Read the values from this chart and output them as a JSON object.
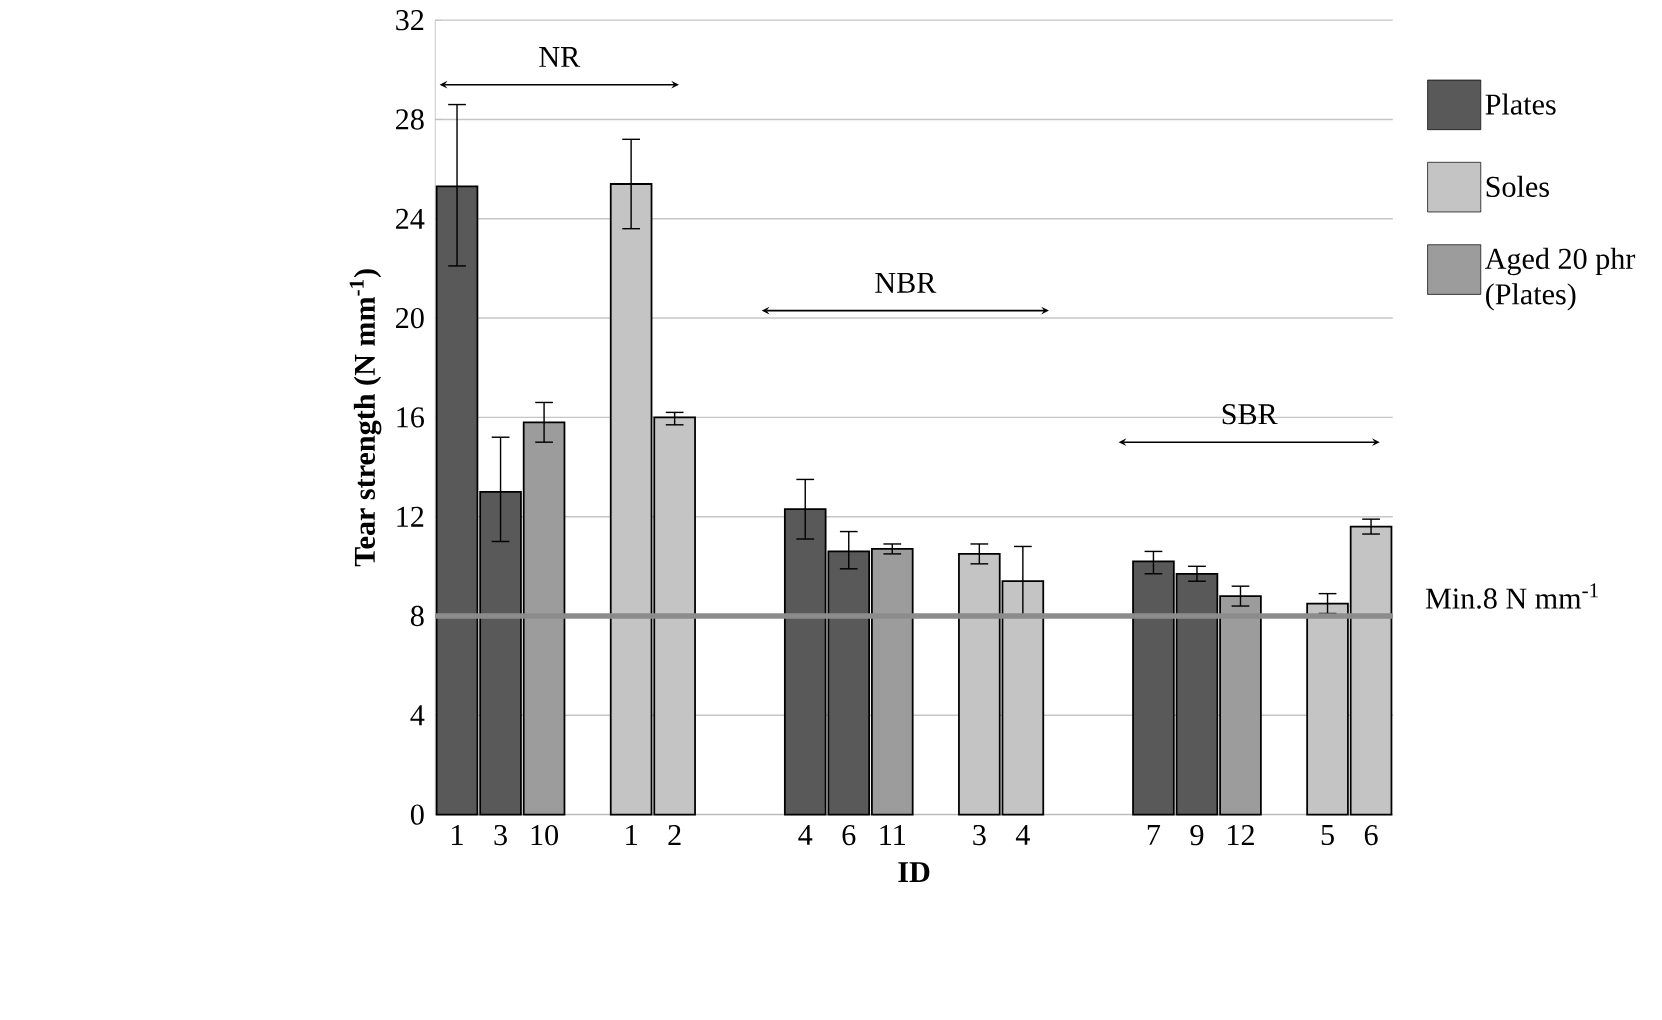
{
  "chart_data": {
    "type": "bar",
    "xlabel": "ID",
    "ylabel": "Tear strength  (N mm$^{-1}$)",
    "categories": [
      "1",
      "3",
      "10",
      null,
      "1",
      "2",
      null,
      null,
      "4",
      "6",
      "11",
      null,
      "3",
      "4",
      null,
      null,
      "7",
      "9",
      "12",
      null,
      "5",
      "6"
    ],
    "series": [
      {
        "name": "Plates",
        "color": "#595959",
        "values": [
          25.3,
          13.0,
          null,
          null,
          null,
          null,
          null,
          null,
          12.3,
          10.6,
          null,
          null,
          null,
          null,
          null,
          null,
          10.2,
          9.7,
          null,
          null,
          null,
          null
        ],
        "errors": [
          [
            22.1,
            28.6
          ],
          [
            11.0,
            15.2
          ],
          null,
          null,
          null,
          null,
          null,
          null,
          [
            11.1,
            13.5
          ],
          [
            9.9,
            11.4
          ],
          null,
          null,
          null,
          null,
          null,
          null,
          [
            9.7,
            10.6
          ],
          [
            9.4,
            10.0
          ],
          null,
          null,
          null,
          null
        ]
      },
      {
        "name": "Soles",
        "color": "#c4c4c4",
        "values": [
          null,
          null,
          null,
          null,
          25.4,
          16.0,
          null,
          null,
          null,
          null,
          null,
          null,
          10.5,
          9.4,
          null,
          null,
          null,
          null,
          null,
          null,
          8.5,
          11.6
        ],
        "errors": [
          null,
          null,
          null,
          null,
          [
            23.6,
            27.2
          ],
          [
            15.7,
            16.2
          ],
          null,
          null,
          null,
          null,
          null,
          null,
          [
            10.1,
            10.9
          ],
          [
            8.0,
            10.8
          ],
          null,
          null,
          null,
          null,
          null,
          null,
          [
            8.1,
            8.9
          ],
          [
            11.3,
            11.9
          ]
        ]
      },
      {
        "name": "Aged 20 phr (Plates)",
        "color": "#9c9c9c",
        "values": [
          null,
          null,
          15.8,
          null,
          null,
          null,
          null,
          null,
          null,
          null,
          10.7,
          null,
          null,
          null,
          null,
          null,
          null,
          null,
          8.8,
          null,
          null,
          null
        ],
        "errors": [
          null,
          null,
          [
            15.0,
            16.6
          ],
          null,
          null,
          null,
          null,
          null,
          null,
          null,
          [
            10.5,
            10.9
          ],
          null,
          null,
          null,
          null,
          null,
          null,
          null,
          [
            8.4,
            9.2
          ],
          null,
          null,
          null
        ]
      }
    ],
    "ylim": [
      0,
      32
    ],
    "yticks": [
      0,
      4,
      8,
      12,
      16,
      20,
      24,
      28,
      32
    ],
    "grid": "y",
    "legend": "right",
    "ref_lines": [
      {
        "axis": "y",
        "value": 8,
        "label": "Min.8 N mm$^{-1}$",
        "color": "#8c8c8c"
      }
    ],
    "annotations": [
      "NR",
      "NBR",
      "SBR"
    ]
  }
}
